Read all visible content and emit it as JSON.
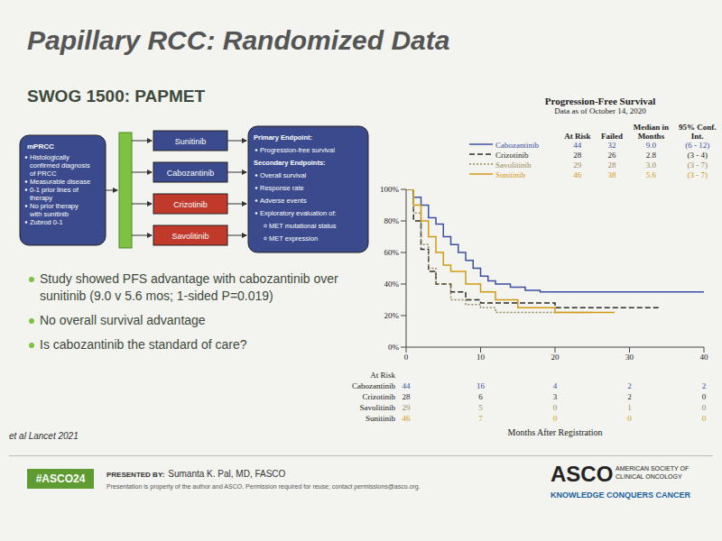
{
  "title": "Papillary RCC: Randomized Data",
  "subtitle": "SWOG 1500: PAPMET",
  "diagram": {
    "population": {
      "label": "mPRCC",
      "items": [
        "Histologically confirmed diagnosis of PRCC",
        "Measurable disease",
        "0-1 prior lines of therapy",
        "No prior therapy with sunitinib",
        "Zubrod 0-1"
      ]
    },
    "arms": [
      {
        "label": "Sunitinib",
        "color": "#3b4a8c"
      },
      {
        "label": "Cabozantinib",
        "color": "#3b4a8c"
      },
      {
        "label": "Crizotinib",
        "color": "#c0392b"
      },
      {
        "label": "Savolitinib",
        "color": "#c0392b"
      }
    ],
    "endpoints": {
      "primary_label": "Primary Endpoint:",
      "primary": [
        "Progression-free survival"
      ],
      "secondary_label": "Secondary Endpoints:",
      "secondary": [
        "Overall survival",
        "Response rate",
        "Adverse events",
        "Exploratory evaluation of:"
      ],
      "exploratory": [
        "MET mutational status",
        "MET expression"
      ]
    }
  },
  "bullets": [
    "Study showed PFS advantage with cabozantinib over sunitinib (9.0 v 5.6 mos; 1-sided P=0.019)",
    "No overall survival advantage",
    "Is cabozantinib the standard of care?"
  ],
  "footer": {
    "citation": "et al Lancet 2021",
    "hashtag": "#ASCO24",
    "presented_by_label": "PRESENTED BY:",
    "presenter": "Sumanta K. Pal, MD, FASCO",
    "permission": "Presentation is property of the author and ASCO. Permission required for reuse; contact permissions@asco.org.",
    "logo": "ASCO",
    "organization": "AMERICAN SOCIETY OF CLINICAL ONCOLOGY",
    "tagline": "KNOWLEDGE CONQUERS CANCER"
  },
  "chart_data": {
    "type": "line",
    "title": "Progression-Free Survival",
    "subtitle": "Data as of October 14, 2020",
    "x_label": "Months After Registration",
    "xlim": [
      0,
      40
    ],
    "xticks": [
      0,
      10,
      20,
      30,
      40
    ],
    "ylim": [
      0,
      100
    ],
    "yticks": [
      {
        "value": 0,
        "label": "0%"
      },
      {
        "value": 20,
        "label": "20%"
      },
      {
        "value": 40,
        "label": "40%"
      },
      {
        "value": 60,
        "label": "60%"
      },
      {
        "value": 80,
        "label": "80%"
      },
      {
        "value": 100,
        "label": "100%"
      }
    ],
    "grid": false,
    "summary_table": {
      "columns": [
        "At Risk",
        "Failed",
        "Median in Months",
        "95% Conf. Int."
      ],
      "rows": [
        {
          "name": "Cabozantinib",
          "cells": [
            "44",
            "32",
            "9.0",
            "(6 - 12)"
          ]
        },
        {
          "name": "Crizotinib",
          "cells": [
            "28",
            "26",
            "2.8",
            "(3 - 4)"
          ]
        },
        {
          "name": "Savolitinib",
          "cells": [
            "29",
            "28",
            "3.0",
            "(3 - 7)"
          ]
        },
        {
          "name": "Sunitinib",
          "cells": [
            "46",
            "38",
            "5.6",
            "(3 - 7)"
          ]
        }
      ]
    },
    "at_risk_label": "At Risk",
    "at_risk_times": [
      0,
      10,
      20,
      30,
      40
    ],
    "series": [
      {
        "name": "Cabozantinib",
        "color": "#3c4fa3",
        "line_style": "solid",
        "x": [
          0,
          1,
          2,
          3,
          4,
          5,
          6,
          7,
          8,
          9,
          10,
          11,
          12,
          14,
          16,
          18,
          24,
          30,
          34,
          40
        ],
        "values": [
          100,
          95,
          90,
          82,
          78,
          70,
          65,
          60,
          55,
          50,
          45,
          42,
          40,
          38,
          36,
          35,
          35,
          35,
          35,
          35
        ],
        "at_risk": [
          44,
          16,
          4,
          2,
          2
        ]
      },
      {
        "name": "Crizotinib",
        "color": "#2b2b2b",
        "line_style": "dashed",
        "x": [
          0,
          1,
          2,
          3,
          4,
          6,
          8,
          10,
          14,
          20,
          30,
          34
        ],
        "values": [
          100,
          80,
          62,
          48,
          40,
          35,
          30,
          28,
          28,
          25,
          25,
          25
        ],
        "at_risk": [
          28,
          6,
          3,
          2,
          0
        ]
      },
      {
        "name": "Savolitinib",
        "color": "#9a8a5a",
        "line_style": "dotted",
        "x": [
          0,
          1,
          2,
          3,
          4,
          6,
          8,
          10,
          12,
          18,
          25
        ],
        "values": [
          100,
          85,
          65,
          50,
          40,
          30,
          27,
          25,
          22,
          22,
          22
        ],
        "at_risk": [
          29,
          5,
          0,
          1,
          0
        ]
      },
      {
        "name": "Sunitinib",
        "color": "#d39a12",
        "line_style": "solid",
        "x": [
          0,
          1,
          2,
          3,
          4,
          5,
          6,
          8,
          10,
          12,
          15,
          20,
          28
        ],
        "values": [
          100,
          90,
          80,
          70,
          60,
          52,
          48,
          40,
          35,
          30,
          25,
          22,
          22
        ],
        "at_risk": [
          46,
          7,
          0,
          0,
          0
        ]
      }
    ]
  }
}
